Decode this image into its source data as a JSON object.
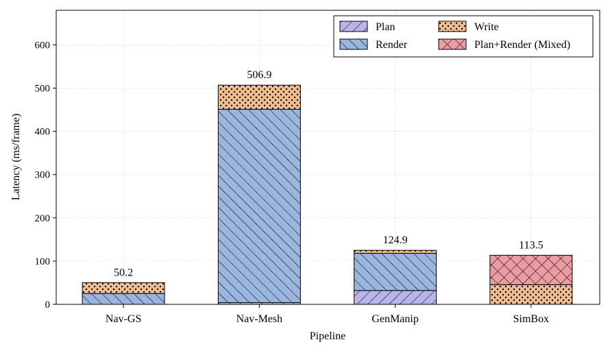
{
  "chart_data": {
    "type": "bar",
    "stacked": true,
    "title": "",
    "xlabel": "Pipeline",
    "ylabel": "Latency (ms/frame)",
    "ylim": [
      0,
      680
    ],
    "yticks": [
      0,
      100,
      200,
      300,
      400,
      500,
      600
    ],
    "grid": true,
    "legend_position": "top-right",
    "categories": [
      "Nav-GS",
      "Nav-Mesh",
      "GenManip",
      "SimBox"
    ],
    "series": [
      {
        "name": "Plan",
        "color": "#b9b5ea",
        "pattern": "hatch-fwd",
        "values": [
          0,
          4,
          32,
          0
        ]
      },
      {
        "name": "Render",
        "color": "#9ab5de",
        "pattern": "hatch-back",
        "values": [
          25,
          447,
          86,
          0
        ]
      },
      {
        "name": "Write",
        "color": "#efbe8f",
        "pattern": "dots",
        "values": [
          25.2,
          55.9,
          6.9,
          45.5
        ]
      },
      {
        "name": "Plan+Render (Mixed)",
        "color": "#ec9aa3",
        "pattern": "crosshatch",
        "values": [
          0,
          0,
          0,
          68
        ]
      }
    ],
    "totals": [
      50.2,
      506.9,
      124.9,
      113.5
    ],
    "total_labels": [
      "50.2",
      "506.9",
      "124.9",
      "113.5"
    ]
  }
}
